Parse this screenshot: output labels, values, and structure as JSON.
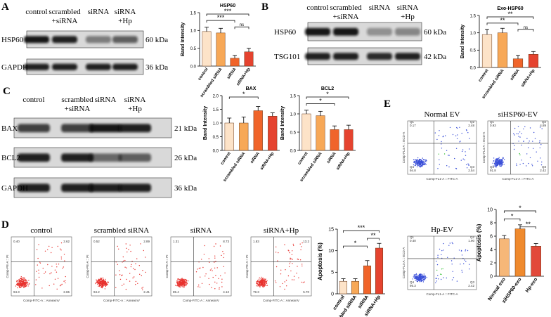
{
  "panels": {
    "A": {
      "letter": "A",
      "lanes": [
        [
          "control"
        ],
        [
          "scrambled",
          "+siRNA"
        ],
        [
          "siRNA"
        ],
        [
          "siRNA",
          "+Hp"
        ]
      ],
      "rows": [
        {
          "protein": "HSP60",
          "size": "60 kDa"
        },
        {
          "protein": "GAPDH",
          "size": "36 kDa"
        }
      ]
    },
    "B": {
      "letter": "B",
      "lanes": [
        [
          "control"
        ],
        [
          "scrambled",
          "+siRNA"
        ],
        [
          "siRNA"
        ],
        [
          "siRNA",
          "+Hp"
        ]
      ],
      "rows": [
        {
          "protein": "HSP60",
          "size": "60 kDa"
        },
        {
          "protein": "TSG101",
          "size": "42 kDa"
        }
      ]
    },
    "C": {
      "letter": "C",
      "lanes": [
        [
          "control"
        ],
        [
          "scrambled",
          "+siRNA"
        ],
        [
          "siRNA"
        ],
        [
          "siRNA",
          "+Hp"
        ]
      ],
      "rows": [
        {
          "protein": "BAX",
          "size": "21 kDa"
        },
        {
          "protein": "BCL2",
          "size": "26 kDa"
        },
        {
          "protein": "GAPDH",
          "size": "36 kDa"
        }
      ]
    },
    "D": {
      "letter": "D",
      "x_axis": "Comp-FITC-A :: AnnexinV",
      "y_axis": "Comp-PE-A :: PI",
      "plots": [
        {
          "title": "control",
          "quadrants": [
            "0.40",
            "2.62",
            "2.65",
            "94.3"
          ]
        },
        {
          "title": "scrambled siRNA",
          "quadrants": [
            "0.52",
            "2.89",
            "2.41",
            "94.2"
          ]
        },
        {
          "title": "siRNA",
          "quadrants": [
            "1.31",
            "8.73",
            "4.12",
            "85.4"
          ]
        },
        {
          "title": "siRNA+Hp",
          "quadrants": [
            "1.83",
            "13.2",
            "5.70",
            "79.3"
          ]
        }
      ]
    },
    "E": {
      "letter": "E",
      "x_axis": "Comp-FL1-A :: FITC-A",
      "y_axis": "Comp-FL4-A :: ECD-A",
      "quadrant_names": [
        "Q1",
        "Q2",
        "Q3",
        "Q4"
      ],
      "plots": [
        {
          "title": "Normal EV",
          "quadrants": [
            "0.17",
            "2.48",
            "2.54",
            "94.8"
          ]
        },
        {
          "title": "siHSP60-EV",
          "quadrants": [
            "0.93",
            "4.89",
            "2.42",
            "91.8"
          ]
        },
        {
          "title": "Hp-EV",
          "quadrants": [
            "0.40",
            "1.90",
            "2.42",
            "95.3"
          ]
        }
      ]
    }
  },
  "chart_data": [
    {
      "type": "bar",
      "title": "HSP60",
      "ylabel": "Band Intensity",
      "categories": [
        "control",
        "scrambled siRNA",
        "siRNA",
        "siRNA+Hp"
      ],
      "values": [
        0.97,
        0.93,
        0.22,
        0.4
      ],
      "errors": [
        0.12,
        0.13,
        0.08,
        0.1
      ],
      "colors": [
        "#fde3c8",
        "#f7a857",
        "#f0642a",
        "#e5432f"
      ],
      "ylim": [
        0,
        1.5
      ],
      "yticks": [
        {
          "value": 0,
          "label": "0.0"
        },
        {
          "value": 0.5,
          "label": "0.5"
        },
        {
          "value": 1,
          "label": "1.0"
        },
        {
          "value": 1.5,
          "label": "1.5"
        }
      ],
      "significance": [
        {
          "pair": [
            0,
            3
          ],
          "label": "***"
        },
        {
          "pair": [
            0,
            2
          ],
          "label": "***"
        },
        {
          "pair": [
            2,
            3
          ],
          "label": "ns"
        }
      ]
    },
    {
      "type": "bar",
      "title": "Exo-HSP60",
      "ylabel": "Band Intensity",
      "categories": [
        "control",
        "scrambled siRNA",
        "siRNA",
        "siRNA+Hp"
      ],
      "values": [
        0.95,
        1.0,
        0.25,
        0.38
      ],
      "errors": [
        0.15,
        0.13,
        0.1,
        0.08
      ],
      "colors": [
        "#fde3c8",
        "#f7a857",
        "#f0642a",
        "#e5432f"
      ],
      "ylim": [
        0,
        1.5
      ],
      "yticks": [
        {
          "value": 0,
          "label": "0.0"
        },
        {
          "value": 0.5,
          "label": "0.5"
        },
        {
          "value": 1,
          "label": "1.0"
        },
        {
          "value": 1.5,
          "label": "1.5"
        }
      ],
      "significance": [
        {
          "pair": [
            0,
            3
          ],
          "label": "**"
        },
        {
          "pair": [
            0,
            2
          ],
          "label": "**"
        },
        {
          "pair": [
            2,
            3
          ],
          "label": "ns"
        }
      ]
    },
    {
      "type": "bar",
      "title": "BAX",
      "ylabel": "Band Intensity",
      "categories": [
        "control",
        "scrambled siRNA",
        "siRNA",
        "siRNA+Hp"
      ],
      "values": [
        1.0,
        1.0,
        1.45,
        1.25
      ],
      "errors": [
        0.18,
        0.22,
        0.15,
        0.12
      ],
      "colors": [
        "#fde3c8",
        "#f7a857",
        "#f0642a",
        "#e5432f"
      ],
      "ylim": [
        0,
        2
      ],
      "yticks": [
        {
          "value": 0,
          "label": "0.0"
        },
        {
          "value": 0.5,
          "label": "0.5"
        },
        {
          "value": 1,
          "label": "1.0"
        },
        {
          "value": 1.5,
          "label": "1.5"
        },
        {
          "value": 2,
          "label": "2.0"
        }
      ],
      "significance": [
        {
          "pair": [
            0,
            2
          ],
          "label": "*"
        }
      ]
    },
    {
      "type": "bar",
      "title": "BCL2",
      "ylabel": "Band Intensity",
      "categories": [
        "control",
        "scrambled siRNA",
        "siRNA",
        "siRNA+Hp"
      ],
      "values": [
        1.0,
        0.95,
        0.57,
        0.57
      ],
      "errors": [
        0.1,
        0.12,
        0.1,
        0.12
      ],
      "colors": [
        "#fde3c8",
        "#f7a857",
        "#f0642a",
        "#e5432f"
      ],
      "ylim": [
        0,
        1.5
      ],
      "yticks": [
        {
          "value": 0,
          "label": "0.0"
        },
        {
          "value": 0.5,
          "label": "0.5"
        },
        {
          "value": 1,
          "label": "1.0"
        },
        {
          "value": 1.5,
          "label": "1.5"
        }
      ],
      "significance": [
        {
          "pair": [
            0,
            3
          ],
          "label": "*"
        },
        {
          "pair": [
            0,
            2
          ],
          "label": "*"
        }
      ]
    },
    {
      "type": "bar",
      "title": null,
      "ylabel": "Apoptosis (%)",
      "categories": [
        "control",
        "scrambled siRNA",
        "siRNA",
        "siRNA+Hp"
      ],
      "values": [
        2.9,
        2.9,
        6.5,
        10.6
      ],
      "errors": [
        0.6,
        0.6,
        1.2,
        1.1
      ],
      "colors": [
        "#fde3c8",
        "#f7a857",
        "#f0642a",
        "#e5432f"
      ],
      "ylim": [
        0,
        15
      ],
      "yticks": [
        0,
        5,
        10,
        15
      ],
      "significance": [
        {
          "pair": [
            0,
            3
          ],
          "label": "***"
        },
        {
          "pair": [
            2,
            3
          ],
          "label": "**"
        },
        {
          "pair": [
            0,
            2
          ],
          "label": "*"
        }
      ]
    },
    {
      "type": "bar",
      "title": null,
      "ylabel": "Apoptosis (%)",
      "categories": [
        "Normal exo",
        "siHSP60-exo",
        "Hp-exo"
      ],
      "values": [
        5.6,
        7.1,
        4.5
      ],
      "errors": [
        0.5,
        0.6,
        0.4
      ],
      "colors": [
        "#f6b778",
        "#ef8a2e",
        "#e2493a"
      ],
      "ylim": [
        0,
        10
      ],
      "yticks": [
        0,
        2,
        4,
        6,
        8,
        10
      ],
      "significance": [
        {
          "pair": [
            0,
            2
          ],
          "label": "*"
        },
        {
          "pair": [
            0,
            1
          ],
          "label": "*"
        },
        {
          "pair": [
            1,
            2
          ],
          "label": "**"
        }
      ]
    }
  ]
}
